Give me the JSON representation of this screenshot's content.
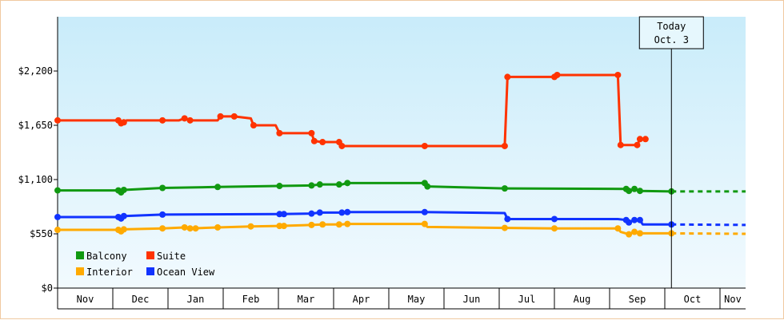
{
  "chart_data": {
    "type": "line",
    "title": "",
    "xlabel": "",
    "ylabel": "",
    "ylim": [
      0,
      2750
    ],
    "yticks": [
      "$0",
      "$550",
      "$1,100",
      "$1,650",
      "$2,200"
    ],
    "ytick_values": [
      0,
      550,
      1100,
      1650,
      2200
    ],
    "months": [
      "Nov",
      "Dec",
      "Jan",
      "Feb",
      "Mar",
      "Apr",
      "May",
      "Jun",
      "Jul",
      "Aug",
      "Sep",
      "Oct",
      "Nov"
    ],
    "x_unit": "month index (0 = Nov start)",
    "grid": false,
    "background": "gradient light blue to white",
    "today": {
      "line1": "Today",
      "line2": "Oct. 3",
      "x": 11.12
    },
    "legend_position": "bottom-left",
    "legend": [
      {
        "name": "Balcony",
        "color": "#119911"
      },
      {
        "name": "Suite",
        "color": "#ff3300"
      },
      {
        "name": "Interior",
        "color": "#ffaa00"
      },
      {
        "name": "Ocean View",
        "color": "#1133ff"
      }
    ],
    "series": [
      {
        "name": "Suite",
        "color": "#ff3300",
        "points": [
          [
            0,
            1700
          ],
          [
            1.1,
            1700
          ],
          [
            1.15,
            1670
          ],
          [
            1.2,
            1680
          ],
          [
            1.25,
            1700
          ],
          [
            1.9,
            1700
          ],
          [
            2.2,
            1700
          ],
          [
            2.3,
            1720
          ],
          [
            2.4,
            1700
          ],
          [
            2.9,
            1700
          ],
          [
            2.95,
            1740
          ],
          [
            3.2,
            1740
          ],
          [
            3.5,
            1720
          ],
          [
            3.55,
            1650
          ],
          [
            3.95,
            1650
          ],
          [
            4.02,
            1570
          ],
          [
            4.6,
            1570
          ],
          [
            4.65,
            1490
          ],
          [
            4.8,
            1480
          ],
          [
            5.1,
            1480
          ],
          [
            5.15,
            1440
          ],
          [
            6.65,
            1440
          ],
          [
            8.1,
            1440
          ],
          [
            8.15,
            2140
          ],
          [
            9,
            2140
          ],
          [
            9.05,
            2160
          ],
          [
            10.15,
            2160
          ],
          [
            10.2,
            1450
          ],
          [
            10.5,
            1450
          ],
          [
            10.55,
            1510
          ],
          [
            10.65,
            1510
          ]
        ],
        "markers": [
          0,
          1.1,
          1.15,
          1.2,
          1.9,
          2.3,
          2.4,
          2.95,
          3.2,
          3.55,
          4.02,
          4.6,
          4.65,
          4.8,
          5.1,
          5.15,
          6.65,
          8.1,
          8.15,
          9,
          9.05,
          10.15,
          10.2,
          10.5,
          10.55,
          10.65
        ]
      },
      {
        "name": "Balcony",
        "color": "#119911",
        "points": [
          [
            0,
            990
          ],
          [
            1.1,
            990
          ],
          [
            1.15,
            970
          ],
          [
            1.2,
            995
          ],
          [
            1.9,
            1015
          ],
          [
            2.9,
            1025
          ],
          [
            4.02,
            1035
          ],
          [
            4.6,
            1040
          ],
          [
            4.75,
            1050
          ],
          [
            5.15,
            1050
          ],
          [
            5.25,
            1065
          ],
          [
            6.65,
            1065
          ],
          [
            6.7,
            1030
          ],
          [
            8.1,
            1010
          ],
          [
            10.3,
            1005
          ],
          [
            10.35,
            985
          ],
          [
            10.45,
            1005
          ],
          [
            10.55,
            985
          ],
          [
            11.12,
            980
          ]
        ],
        "markers": [
          0,
          1.1,
          1.15,
          1.2,
          1.9,
          2.9,
          4.02,
          4.6,
          4.75,
          5.1,
          5.25,
          6.65,
          6.7,
          8.1,
          10.3,
          10.35,
          10.45,
          10.55,
          11.12
        ],
        "projection": [
          [
            11.12,
            980
          ],
          [
            12.6,
            980
          ]
        ]
      },
      {
        "name": "Ocean View",
        "color": "#1133ff",
        "points": [
          [
            0,
            720
          ],
          [
            1.1,
            720
          ],
          [
            1.15,
            705
          ],
          [
            1.2,
            730
          ],
          [
            1.9,
            745
          ],
          [
            4.02,
            750
          ],
          [
            4.6,
            755
          ],
          [
            4.75,
            765
          ],
          [
            5.15,
            765
          ],
          [
            5.25,
            770
          ],
          [
            6.65,
            770
          ],
          [
            8.1,
            760
          ],
          [
            8.15,
            700
          ],
          [
            9,
            700
          ],
          [
            10.15,
            700
          ],
          [
            10.3,
            690
          ],
          [
            10.35,
            665
          ],
          [
            10.45,
            690
          ],
          [
            10.55,
            690
          ],
          [
            10.6,
            645
          ],
          [
            11.12,
            645
          ]
        ],
        "markers": [
          0,
          1.1,
          1.15,
          1.2,
          1.9,
          4.02,
          4.1,
          4.6,
          4.75,
          5.15,
          5.25,
          6.65,
          8.15,
          9,
          10.3,
          10.35,
          10.45,
          10.55,
          11.12
        ],
        "projection": [
          [
            11.12,
            645
          ],
          [
            12.6,
            640
          ]
        ]
      },
      {
        "name": "Interior",
        "color": "#ffaa00",
        "points": [
          [
            0,
            590
          ],
          [
            1.1,
            590
          ],
          [
            1.15,
            575
          ],
          [
            1.2,
            595
          ],
          [
            1.9,
            605
          ],
          [
            2.3,
            615
          ],
          [
            2.4,
            605
          ],
          [
            2.9,
            615
          ],
          [
            3.5,
            625
          ],
          [
            4.02,
            630
          ],
          [
            4.6,
            640
          ],
          [
            4.8,
            645
          ],
          [
            5.15,
            645
          ],
          [
            5.25,
            650
          ],
          [
            6.65,
            650
          ],
          [
            6.7,
            620
          ],
          [
            8.1,
            610
          ],
          [
            9,
            605
          ],
          [
            10.15,
            605
          ],
          [
            10.2,
            570
          ],
          [
            10.35,
            545
          ],
          [
            10.45,
            570
          ],
          [
            10.55,
            555
          ],
          [
            11.12,
            555
          ]
        ],
        "markers": [
          0,
          1.1,
          1.15,
          1.2,
          1.9,
          2.3,
          2.4,
          2.5,
          2.9,
          3.5,
          4.02,
          4.1,
          4.6,
          4.8,
          5.1,
          5.25,
          6.65,
          8.1,
          9,
          10.15,
          10.35,
          10.45,
          10.55,
          11.12
        ],
        "projection": [
          [
            11.12,
            555
          ],
          [
            12.6,
            550
          ]
        ]
      }
    ]
  }
}
